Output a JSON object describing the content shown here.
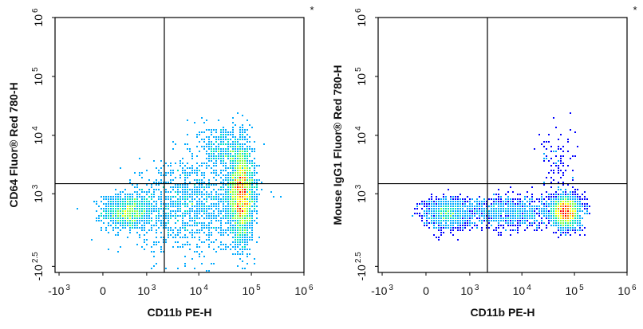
{
  "chart_data": [
    {
      "type": "scatter",
      "subtype": "flow-cytometry-density-dot-plot",
      "xlabel": "CD11b PE-H",
      "ylabel": "CD64  Fluor® Red 780-H",
      "corner_mark": "*",
      "x_scale": "biexponential",
      "y_scale": "biexponential",
      "x_ticks": [
        {
          "base": "-10",
          "exp": "3",
          "value": -1000
        },
        {
          "base": "0",
          "exp": "",
          "value": 0
        },
        {
          "base": "10",
          "exp": "3",
          "value": 1000
        },
        {
          "base": "10",
          "exp": "4",
          "value": 10000
        },
        {
          "base": "10",
          "exp": "5",
          "value": 100000
        },
        {
          "base": "10",
          "exp": "6",
          "value": 1000000
        }
      ],
      "y_ticks": [
        {
          "base": "-10",
          "exp": "2.5",
          "value": -316
        },
        {
          "base": "10",
          "exp": "3",
          "value": 1000
        },
        {
          "base": "10",
          "exp": "4",
          "value": 10000
        },
        {
          "base": "10",
          "exp": "5",
          "value": 100000
        },
        {
          "base": "10",
          "exp": "6",
          "value": 1000000
        }
      ],
      "gate": {
        "x": 2200,
        "y": 1500
      },
      "populations": [
        {
          "x_center": 400,
          "y_center": 450,
          "spread_x": 0.55,
          "spread_y": 0.35,
          "count": 900
        },
        {
          "x_center": 65000,
          "y_center": 1000,
          "spread_x": 0.28,
          "spread_y": 0.9,
          "count": 2600
        },
        {
          "x_center": 7000,
          "y_center": 600,
          "spread_x": 1.2,
          "spread_y": 0.9,
          "count": 1100
        },
        {
          "x_center": 30000,
          "y_center": 6000,
          "spread_x": 0.5,
          "spread_y": 0.5,
          "count": 350
        }
      ],
      "colors": [
        "#0000ff",
        "#00aaff",
        "#00e0c0",
        "#80ff40",
        "#ffff00",
        "#ff8000",
        "#ff0000"
      ]
    },
    {
      "type": "scatter",
      "subtype": "flow-cytometry-density-dot-plot",
      "xlabel": "CD11b PE-H",
      "ylabel": "Mouse IgG1 Fluor® Red 780-H",
      "corner_mark": "*",
      "x_scale": "biexponential",
      "y_scale": "biexponential",
      "x_ticks": [
        {
          "base": "-10",
          "exp": "3",
          "value": -1000
        },
        {
          "base": "0",
          "exp": "",
          "value": 0
        },
        {
          "base": "10",
          "exp": "3",
          "value": 1000
        },
        {
          "base": "10",
          "exp": "4",
          "value": 10000
        },
        {
          "base": "10",
          "exp": "5",
          "value": 100000
        },
        {
          "base": "10",
          "exp": "6",
          "value": 1000000
        }
      ],
      "y_ticks": [
        {
          "base": "-10",
          "exp": "2.5",
          "value": -316
        },
        {
          "base": "10",
          "exp": "3",
          "value": 1000
        },
        {
          "base": "10",
          "exp": "4",
          "value": 10000
        },
        {
          "base": "10",
          "exp": "5",
          "value": 100000
        },
        {
          "base": "10",
          "exp": "6",
          "value": 1000000
        }
      ],
      "gate": {
        "x": 2200,
        "y": 1500
      },
      "populations": [
        {
          "x_center": 300,
          "y_center": 420,
          "spread_x": 0.5,
          "spread_y": 0.3,
          "count": 900
        },
        {
          "x_center": 70000,
          "y_center": 450,
          "spread_x": 0.3,
          "spread_y": 0.3,
          "count": 2600
        },
        {
          "x_center": 6000,
          "y_center": 450,
          "spread_x": 1.2,
          "spread_y": 0.3,
          "count": 1100
        },
        {
          "x_center": 50000,
          "y_center": 3000,
          "spread_x": 0.4,
          "spread_y": 0.8,
          "count": 100
        }
      ],
      "colors": [
        "#0000ff",
        "#00aaff",
        "#00e0c0",
        "#80ff40",
        "#ffff00",
        "#ff8000",
        "#ff0000"
      ]
    }
  ]
}
